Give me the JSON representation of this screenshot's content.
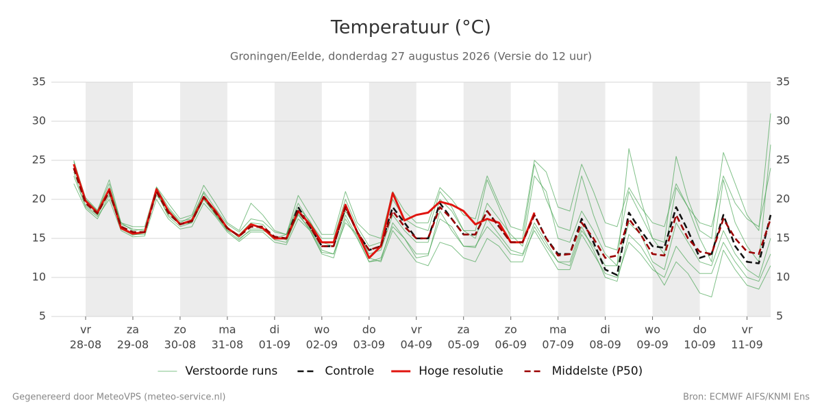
{
  "chart_data": {
    "type": "line",
    "title": "Temperatuur (°C)",
    "subtitle": "Groningen/Eelde, donderdag 27 augustus 2026 (Versie do 12 uur)",
    "footer_left": "Gegenereerd door MeteoVPS (meteo-service.nl)",
    "footer_right": "Bron: ECMWF AIFS/KNMI Ens",
    "categories": [
      null,
      "28-08",
      null,
      null,
      null,
      "29-08",
      null,
      null,
      null,
      "30-08",
      null,
      null,
      null,
      "31-08",
      null,
      null,
      null,
      "01-09",
      null,
      null,
      null,
      "02-09",
      null,
      null,
      null,
      "03-09",
      null,
      null,
      null,
      "04-09",
      null,
      null,
      null,
      "05-09",
      null,
      null,
      null,
      "06-09",
      null,
      null,
      null,
      "07-09",
      null,
      null,
      null,
      "08-09",
      null,
      null,
      null,
      "09-09",
      null,
      null,
      null,
      "10-09",
      null,
      null,
      null,
      "11-09",
      null,
      null
    ],
    "weekdays": [
      null,
      "vr",
      null,
      null,
      null,
      "za",
      null,
      null,
      null,
      "zo",
      null,
      null,
      null,
      "ma",
      null,
      null,
      null,
      "di",
      null,
      null,
      null,
      "wo",
      null,
      null,
      null,
      "do",
      null,
      null,
      null,
      "vr",
      null,
      null,
      null,
      "za",
      null,
      null,
      null,
      "zo",
      null,
      null,
      null,
      "ma",
      null,
      null,
      null,
      "di",
      null,
      null,
      null,
      "wo",
      null,
      null,
      null,
      "do",
      null,
      null,
      null,
      "vr",
      null,
      null
    ],
    "ylim": [
      5,
      35
    ],
    "yticks": [
      5,
      10,
      15,
      20,
      25,
      30,
      35
    ],
    "grid": true,
    "series": [
      {
        "name": "Verstoorde runs",
        "color": "#3a9e46",
        "line_style": "thin",
        "values": [
          25,
          20,
          18.5,
          22,
          16.8,
          16.2,
          16,
          21.5,
          19,
          17.2,
          17.5,
          21,
          18.8,
          16.8,
          15.8,
          17.5,
          17.2,
          15.8,
          15.5,
          19.5,
          17,
          15,
          15,
          20,
          16.5,
          14,
          14.5,
          20,
          17.5,
          16.5,
          16,
          21,
          19,
          16,
          16,
          22.5,
          19,
          15,
          15,
          24.5,
          20,
          16.5,
          16,
          23,
          18,
          14,
          13.5,
          21,
          18,
          15,
          14.5,
          25.5,
          20,
          16,
          15,
          26,
          22,
          18,
          16,
          31
        ]
      },
      {
        "name": "Verstoorde runs",
        "color": "#3a9e46",
        "line_style": "thin",
        "values": [
          23,
          19,
          17.8,
          20,
          16,
          15.2,
          15.3,
          20,
          17.5,
          16.2,
          16.5,
          19.5,
          17.8,
          15.8,
          14.6,
          15.8,
          15.8,
          14.5,
          14.2,
          17.5,
          16,
          13,
          12.5,
          17.5,
          15,
          12,
          12.5,
          16.5,
          15,
          13,
          13,
          17.5,
          16.5,
          14,
          14,
          16.5,
          15,
          13,
          12.8,
          16,
          13.5,
          11,
          11,
          15.5,
          13,
          10.5,
          10,
          14.5,
          13,
          11,
          10,
          14,
          12,
          10.5,
          10.5,
          14.5,
          12,
          10,
          9.5,
          13
        ]
      },
      {
        "name": "Verstoorde runs",
        "color": "#3a9e46",
        "line_style": "thin",
        "values": [
          24,
          19.8,
          18,
          21.5,
          17,
          16,
          16.2,
          20.5,
          18.8,
          17,
          17.8,
          20.8,
          18,
          16,
          15.5,
          17,
          16.8,
          15,
          15.5,
          19,
          17.2,
          14.5,
          14,
          18.5,
          16,
          13,
          13.5,
          18,
          16,
          14.5,
          14.5,
          20,
          18.5,
          16,
          15,
          19.5,
          17.5,
          15.5,
          14,
          23,
          21,
          15,
          14.5,
          18.5,
          16,
          13,
          11.5,
          26.5,
          20,
          15,
          13,
          21.5,
          19,
          15,
          12,
          22.5,
          17,
          14,
          12,
          27
        ]
      },
      {
        "name": "Verstoorde runs",
        "color": "#3a9e46",
        "line_style": "thin",
        "values": [
          22,
          18.8,
          17.5,
          20.5,
          16.5,
          15.5,
          15.5,
          21,
          17.8,
          16.5,
          17,
          20,
          18,
          16.5,
          15,
          16,
          16,
          15.3,
          14.8,
          18,
          16.2,
          13.5,
          13,
          17,
          15.5,
          12.5,
          12,
          16,
          14,
          12,
          11.5,
          14.5,
          14,
          12.5,
          12,
          15,
          14,
          12,
          12,
          16.5,
          14,
          12,
          11.5,
          16,
          14,
          11.5,
          11.5,
          17,
          15.5,
          12,
          11,
          17,
          14.5,
          12,
          11.5,
          16,
          13,
          11,
          10,
          15
        ]
      },
      {
        "name": "Verstoorde runs",
        "color": "#3a9e46",
        "line_style": "thin",
        "values": [
          24.8,
          20.2,
          18.6,
          22.5,
          17,
          16.5,
          16.5,
          21.6,
          19.5,
          17.5,
          18,
          21.8,
          19.5,
          17,
          16,
          19.5,
          18,
          16,
          15.5,
          20.5,
          18,
          15.5,
          15.5,
          21,
          17,
          15.5,
          15,
          21,
          18.5,
          17,
          17,
          21.5,
          20,
          18,
          17.5,
          23,
          19.5,
          16.5,
          16,
          25,
          23.5,
          19,
          18.5,
          24.5,
          21,
          17,
          16.5,
          21.5,
          19,
          17,
          16.5,
          22,
          19,
          17,
          16.5,
          23,
          19.5,
          17.5,
          16.5,
          24
        ]
      },
      {
        "name": "Verstoorde runs",
        "color": "#3a9e46",
        "line_style": "thin",
        "values": [
          23.5,
          19.2,
          18,
          20.8,
          16.2,
          15.4,
          15.7,
          20.8,
          18,
          16.8,
          17,
          20,
          18.2,
          16,
          14.8,
          16.2,
          16.2,
          14.8,
          14.5,
          18.2,
          16,
          13.2,
          13,
          18,
          15.2,
          12,
          12.2,
          17,
          15,
          12.5,
          12.8,
          18.5,
          16,
          14,
          13.8,
          17.5,
          15.5,
          13.5,
          13,
          17,
          14.5,
          12,
          12,
          16.5,
          13.5,
          10,
          9.5,
          15.5,
          14,
          11.5,
          9,
          12,
          10.5,
          8,
          7.5,
          13.5,
          11,
          9,
          8.5,
          11.5
        ]
      },
      {
        "name": "Controle",
        "color": "#111111",
        "line_style": "dashed",
        "values": [
          24,
          19.5,
          18.2,
          21,
          16.5,
          15.8,
          15.8,
          21,
          18.3,
          16.8,
          17.2,
          20.3,
          18.3,
          16.3,
          15.3,
          16.5,
          16.5,
          15.2,
          15,
          19,
          16.5,
          14,
          14,
          19,
          15.8,
          13.5,
          14,
          19,
          17,
          15,
          15,
          19.5,
          17.5,
          15.5,
          15.5,
          18.5,
          16.5,
          14.5,
          14.5,
          18,
          15,
          13,
          13,
          17.5,
          14.5,
          11,
          10.3,
          18.3,
          16,
          14,
          13.8,
          19,
          16,
          12.5,
          13,
          18,
          14,
          12,
          11.8,
          18
        ]
      },
      {
        "name": "Hoge resolutie",
        "color": "#e0140f",
        "line_style": "thick",
        "values": [
          24.5,
          19.8,
          18.3,
          21.3,
          16.3,
          15.6,
          15.8,
          21.3,
          18.5,
          16.8,
          17.3,
          20.3,
          18.5,
          16.3,
          15.3,
          16.8,
          16.3,
          15,
          15,
          18.5,
          16.8,
          14.5,
          14.5,
          19.3,
          15.8,
          12.5,
          14,
          20.8,
          17.3,
          18,
          18.3,
          19.7,
          19.3,
          18.5,
          16.8,
          17.5,
          17,
          14.5,
          14.5,
          18.3,
          null,
          null,
          null,
          null,
          null,
          null,
          null,
          null,
          null,
          null,
          null,
          null,
          null,
          null,
          null,
          null,
          null,
          null,
          null,
          null
        ]
      },
      {
        "name": "Middelste (P50)",
        "color": "#9a0000",
        "line_style": "dashed",
        "values": [
          24,
          19.5,
          18.2,
          21,
          16.5,
          15.8,
          15.8,
          21,
          18.3,
          16.8,
          17.2,
          20.3,
          18.3,
          16.3,
          15.3,
          16.5,
          16.5,
          15.2,
          15,
          18.5,
          16.5,
          14,
          14,
          19,
          15.8,
          13.5,
          14,
          18.5,
          16.5,
          15,
          15,
          19,
          17.5,
          15.5,
          15.5,
          18.5,
          16.5,
          14.5,
          14.5,
          18,
          15,
          12.8,
          13,
          17,
          15,
          12.5,
          12.8,
          17.5,
          15.5,
          13,
          12.8,
          18,
          15,
          13.3,
          13,
          17.5,
          15,
          13.3,
          13,
          17.5
        ]
      }
    ]
  }
}
